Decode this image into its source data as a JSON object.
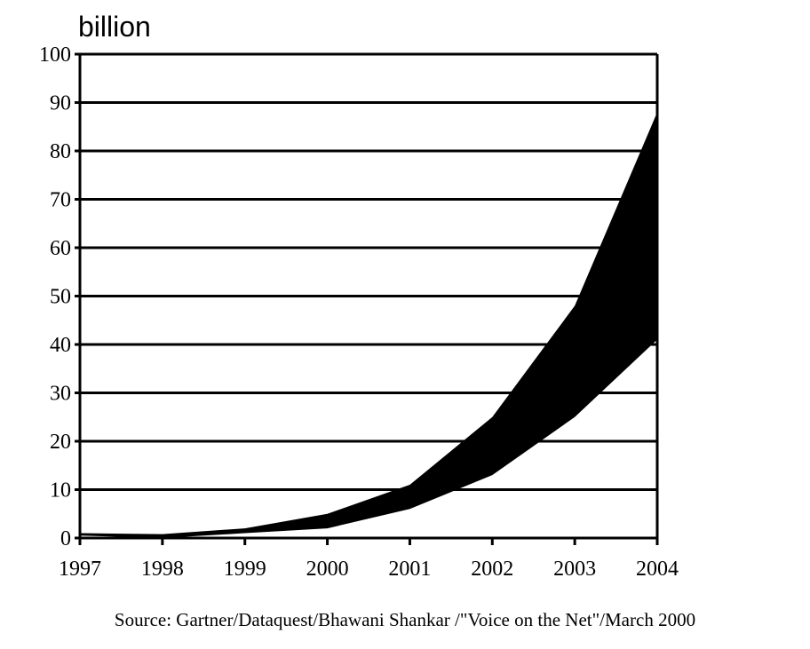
{
  "chart_data": {
    "type": "area",
    "title": "",
    "unit_label": "billion",
    "xlabel": "",
    "ylabel": "billion",
    "x": [
      1997,
      1998,
      1999,
      2000,
      2001,
      2002,
      2003,
      2004
    ],
    "series": [
      {
        "name": "upper",
        "values": [
          1,
          0.8,
          2,
          5,
          11,
          25,
          48,
          88
        ]
      },
      {
        "name": "lower",
        "values": [
          0.5,
          0,
          1,
          2,
          6,
          13,
          25,
          41
        ]
      }
    ],
    "fill_between": true,
    "ylim": [
      0,
      100
    ],
    "yticks": [
      0,
      10,
      20,
      30,
      40,
      50,
      60,
      70,
      80,
      90,
      100
    ],
    "xtick_labels": [
      "1997",
      "1998",
      "1999",
      "2000",
      "2001",
      "2002",
      "2003",
      "2004"
    ],
    "grid": "horizontal",
    "colors": {
      "band": "#000000",
      "grid": "#000000"
    },
    "source": "Source: Gartner/Dataquest/Bhawani Shankar /\"Voice on the Net\"/March 2000"
  }
}
